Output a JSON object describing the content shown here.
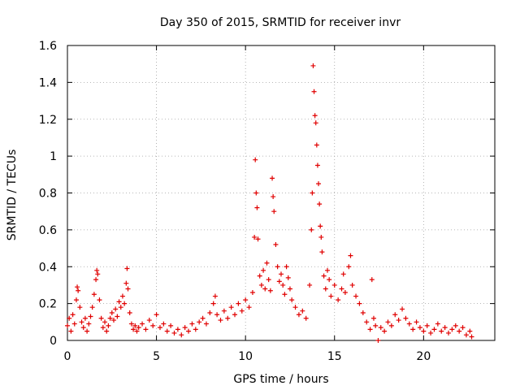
{
  "chart_data": {
    "type": "scatter",
    "title": "Day 350 of 2015, SRMTID for receiver invr",
    "xlabel": "GPS time / hours",
    "ylabel": "SRMTID / TECUs",
    "xlim": [
      0,
      24
    ],
    "ylim": [
      0,
      1.6
    ],
    "x_ticks": [
      0,
      5,
      10,
      15,
      20
    ],
    "x_tick_labels": [
      "0",
      "5",
      "10",
      "15",
      "20"
    ],
    "y_ticks": [
      0,
      0.2,
      0.4,
      0.6,
      0.8,
      1.0,
      1.2,
      1.4,
      1.6
    ],
    "y_tick_labels": [
      "0",
      "0.2",
      "0.4",
      "0.6",
      "0.8",
      "1",
      "1.2",
      "1.4",
      "1.6"
    ],
    "grid": true,
    "marker": "plus",
    "series_color": "#e00000",
    "series": [
      {
        "name": "SRMTID",
        "points": [
          [
            0.0,
            0.08
          ],
          [
            0.1,
            0.12
          ],
          [
            0.2,
            0.05
          ],
          [
            0.3,
            0.14
          ],
          [
            0.4,
            0.09
          ],
          [
            0.5,
            0.22
          ],
          [
            0.55,
            0.29
          ],
          [
            0.6,
            0.27
          ],
          [
            0.7,
            0.18
          ],
          [
            0.8,
            0.1
          ],
          [
            0.9,
            0.07
          ],
          [
            1.0,
            0.12
          ],
          [
            1.1,
            0.05
          ],
          [
            1.2,
            0.09
          ],
          [
            1.3,
            0.13
          ],
          [
            1.4,
            0.18
          ],
          [
            1.5,
            0.25
          ],
          [
            1.6,
            0.33
          ],
          [
            1.65,
            0.38
          ],
          [
            1.7,
            0.36
          ],
          [
            1.8,
            0.22
          ],
          [
            1.9,
            0.12
          ],
          [
            2.0,
            0.07
          ],
          [
            2.1,
            0.1
          ],
          [
            2.2,
            0.05
          ],
          [
            2.3,
            0.08
          ],
          [
            2.4,
            0.12
          ],
          [
            2.5,
            0.15
          ],
          [
            2.6,
            0.11
          ],
          [
            2.7,
            0.17
          ],
          [
            2.8,
            0.13
          ],
          [
            2.9,
            0.21
          ],
          [
            3.0,
            0.18
          ],
          [
            3.1,
            0.24
          ],
          [
            3.2,
            0.2
          ],
          [
            3.3,
            0.31
          ],
          [
            3.35,
            0.39
          ],
          [
            3.4,
            0.28
          ],
          [
            3.5,
            0.15
          ],
          [
            3.6,
            0.09
          ],
          [
            3.7,
            0.06
          ],
          [
            3.8,
            0.08
          ],
          [
            3.9,
            0.05
          ],
          [
            4.0,
            0.07
          ],
          [
            4.2,
            0.09
          ],
          [
            4.4,
            0.06
          ],
          [
            4.6,
            0.11
          ],
          [
            4.8,
            0.08
          ],
          [
            5.0,
            0.14
          ],
          [
            5.2,
            0.07
          ],
          [
            5.4,
            0.09
          ],
          [
            5.6,
            0.05
          ],
          [
            5.8,
            0.08
          ],
          [
            6.0,
            0.04
          ],
          [
            6.2,
            0.06
          ],
          [
            6.4,
            0.03
          ],
          [
            6.6,
            0.07
          ],
          [
            6.8,
            0.05
          ],
          [
            7.0,
            0.09
          ],
          [
            7.2,
            0.06
          ],
          [
            7.4,
            0.1
          ],
          [
            7.6,
            0.12
          ],
          [
            7.8,
            0.09
          ],
          [
            8.0,
            0.15
          ],
          [
            8.2,
            0.2
          ],
          [
            8.3,
            0.24
          ],
          [
            8.4,
            0.14
          ],
          [
            8.6,
            0.11
          ],
          [
            8.8,
            0.16
          ],
          [
            9.0,
            0.12
          ],
          [
            9.2,
            0.18
          ],
          [
            9.4,
            0.14
          ],
          [
            9.6,
            0.2
          ],
          [
            9.8,
            0.16
          ],
          [
            10.0,
            0.22
          ],
          [
            10.2,
            0.18
          ],
          [
            10.4,
            0.26
          ],
          [
            10.5,
            0.56
          ],
          [
            10.55,
            0.98
          ],
          [
            10.6,
            0.8
          ],
          [
            10.65,
            0.72
          ],
          [
            10.7,
            0.55
          ],
          [
            10.8,
            0.35
          ],
          [
            10.9,
            0.3
          ],
          [
            11.0,
            0.38
          ],
          [
            11.1,
            0.28
          ],
          [
            11.2,
            0.42
          ],
          [
            11.3,
            0.33
          ],
          [
            11.4,
            0.27
          ],
          [
            11.5,
            0.88
          ],
          [
            11.55,
            0.78
          ],
          [
            11.6,
            0.7
          ],
          [
            11.7,
            0.52
          ],
          [
            11.8,
            0.4
          ],
          [
            11.9,
            0.32
          ],
          [
            12.0,
            0.36
          ],
          [
            12.1,
            0.3
          ],
          [
            12.2,
            0.25
          ],
          [
            12.3,
            0.4
          ],
          [
            12.4,
            0.34
          ],
          [
            12.5,
            0.28
          ],
          [
            12.6,
            0.22
          ],
          [
            12.8,
            0.18
          ],
          [
            13.0,
            0.14
          ],
          [
            13.2,
            0.16
          ],
          [
            13.4,
            0.12
          ],
          [
            13.6,
            0.3
          ],
          [
            13.7,
            0.6
          ],
          [
            13.75,
            0.8
          ],
          [
            13.8,
            1.49
          ],
          [
            13.85,
            1.35
          ],
          [
            13.9,
            1.22
          ],
          [
            13.95,
            1.18
          ],
          [
            14.0,
            1.06
          ],
          [
            14.05,
            0.95
          ],
          [
            14.1,
            0.85
          ],
          [
            14.15,
            0.74
          ],
          [
            14.2,
            0.62
          ],
          [
            14.25,
            0.56
          ],
          [
            14.3,
            0.48
          ],
          [
            14.4,
            0.35
          ],
          [
            14.5,
            0.28
          ],
          [
            14.6,
            0.38
          ],
          [
            14.7,
            0.33
          ],
          [
            14.8,
            0.24
          ],
          [
            15.0,
            0.3
          ],
          [
            15.2,
            0.22
          ],
          [
            15.4,
            0.28
          ],
          [
            15.5,
            0.36
          ],
          [
            15.6,
            0.26
          ],
          [
            15.8,
            0.4
          ],
          [
            15.9,
            0.46
          ],
          [
            16.0,
            0.3
          ],
          [
            16.2,
            0.24
          ],
          [
            16.4,
            0.2
          ],
          [
            16.6,
            0.15
          ],
          [
            16.8,
            0.1
          ],
          [
            17.0,
            0.06
          ],
          [
            17.1,
            0.33
          ],
          [
            17.2,
            0.12
          ],
          [
            17.3,
            0.08
          ],
          [
            17.45,
            0.0
          ],
          [
            17.6,
            0.07
          ],
          [
            17.8,
            0.05
          ],
          [
            18.0,
            0.1
          ],
          [
            18.2,
            0.08
          ],
          [
            18.4,
            0.14
          ],
          [
            18.6,
            0.11
          ],
          [
            18.8,
            0.17
          ],
          [
            19.0,
            0.12
          ],
          [
            19.2,
            0.09
          ],
          [
            19.4,
            0.06
          ],
          [
            19.6,
            0.1
          ],
          [
            19.8,
            0.07
          ],
          [
            20.0,
            0.05
          ],
          [
            20.2,
            0.08
          ],
          [
            20.4,
            0.04
          ],
          [
            20.6,
            0.06
          ],
          [
            20.8,
            0.09
          ],
          [
            21.0,
            0.05
          ],
          [
            21.2,
            0.07
          ],
          [
            21.4,
            0.04
          ],
          [
            21.6,
            0.06
          ],
          [
            21.8,
            0.08
          ],
          [
            22.0,
            0.05
          ],
          [
            22.2,
            0.07
          ],
          [
            22.4,
            0.03
          ],
          [
            22.6,
            0.05
          ],
          [
            22.7,
            0.02
          ]
        ]
      }
    ]
  }
}
